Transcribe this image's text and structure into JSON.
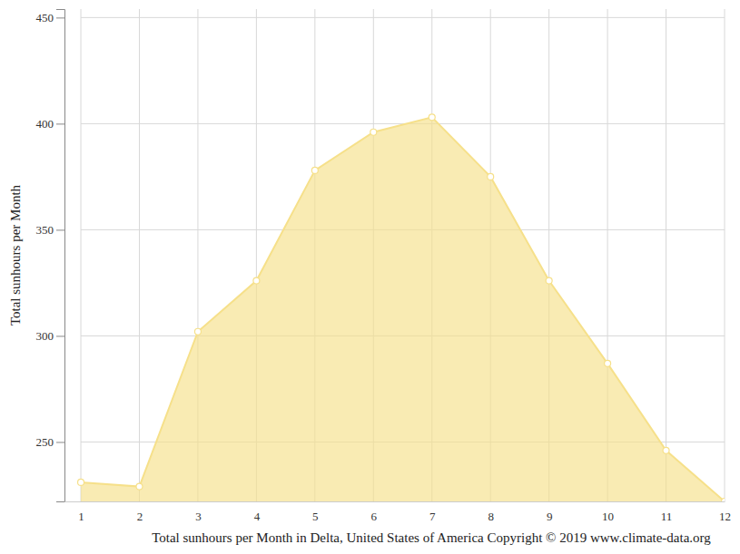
{
  "chart_data": {
    "type": "area",
    "title": "Total sunhours per Month in Delta, United States of America Copyright © 2019 www.climate-data.org",
    "y_label": "Total sunhours per Month",
    "x": [
      1,
      2,
      3,
      4,
      5,
      6,
      7,
      8,
      9,
      10,
      11,
      12
    ],
    "values": [
      231,
      229,
      302,
      326,
      378,
      396,
      403,
      375,
      326,
      287,
      246,
      222
    ],
    "color": "#f6e08a",
    "marker": "circle",
    "xlim": [
      0.72,
      12
    ],
    "xticks": [
      1,
      2,
      3,
      4,
      5,
      6,
      7,
      8,
      9,
      10,
      11,
      12
    ],
    "ylim": [
      222,
      454
    ],
    "yticks": [
      250,
      300,
      350,
      400,
      450
    ],
    "grid": true
  }
}
